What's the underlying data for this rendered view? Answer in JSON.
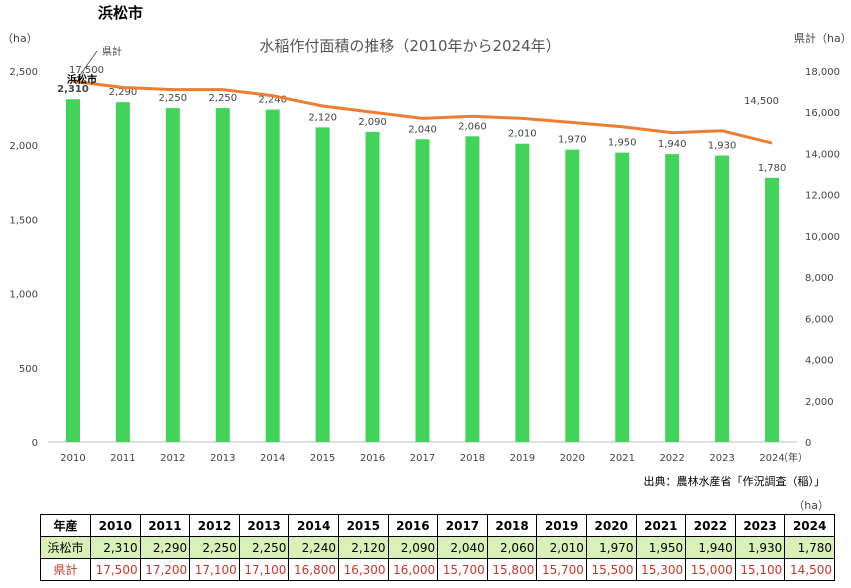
{
  "page_title": "浜松市",
  "chart_data": {
    "type": "bar",
    "title": "水稲作付面積の推移（2010年から2024年）",
    "ylabel_left": "（ha）",
    "ylabel_right": "県計（ha）",
    "xunit": "（年）",
    "source": "出典：農林水産省「作況調査（稲）」",
    "categories": [
      "2010",
      "2011",
      "2012",
      "2013",
      "2014",
      "2015",
      "2016",
      "2017",
      "2018",
      "2019",
      "2020",
      "2021",
      "2022",
      "2023",
      "2024"
    ],
    "ylim_left": [
      0,
      2500
    ],
    "yticks_left": [
      "0",
      "500",
      "1,000",
      "1,500",
      "2,000",
      "2,500"
    ],
    "ylim_right": [
      0,
      18000
    ],
    "yticks_right": [
      "0",
      "2,000",
      "4,000",
      "6,000",
      "8,000",
      "10,000",
      "12,000",
      "14,000",
      "16,000",
      "18,000"
    ],
    "grid": false,
    "series": [
      {
        "name": "浜松市",
        "type": "bar",
        "axis": "left",
        "color": "#44d35a",
        "values": [
          2310,
          2290,
          2250,
          2250,
          2240,
          2120,
          2090,
          2040,
          2060,
          2010,
          1970,
          1950,
          1940,
          1930,
          1780
        ],
        "labels": [
          "2,310",
          "2,290",
          "2,250",
          "2,250",
          "2,240",
          "2,120",
          "2,090",
          "2,040",
          "2,060",
          "2,010",
          "1,970",
          "1,950",
          "1,940",
          "1,930",
          "1,780"
        ]
      },
      {
        "name": "県計",
        "type": "line",
        "axis": "right",
        "color": "#ed7d31",
        "values": [
          17500,
          17200,
          17100,
          17100,
          16800,
          16300,
          16000,
          15700,
          15800,
          15700,
          15500,
          15300,
          15000,
          15100,
          14500
        ],
        "first_label": "17,500",
        "last_label": "14,500"
      }
    ]
  },
  "table": {
    "unit": "（ha）",
    "header_label": "年産",
    "years": [
      "2010",
      "2011",
      "2012",
      "2013",
      "2014",
      "2015",
      "2016",
      "2017",
      "2018",
      "2019",
      "2020",
      "2021",
      "2022",
      "2023",
      "2024"
    ],
    "rows": [
      {
        "label": "浜松市",
        "values": [
          "2,310",
          "2,290",
          "2,250",
          "2,250",
          "2,240",
          "2,120",
          "2,090",
          "2,040",
          "2,060",
          "2,010",
          "1,970",
          "1,950",
          "1,940",
          "1,930",
          "1,780"
        ]
      },
      {
        "label": "県計",
        "values": [
          "17,500",
          "17,200",
          "17,100",
          "17,100",
          "16,800",
          "16,300",
          "16,000",
          "15,700",
          "15,800",
          "15,700",
          "15,500",
          "15,300",
          "15,000",
          "15,100",
          "14,500"
        ]
      }
    ]
  }
}
